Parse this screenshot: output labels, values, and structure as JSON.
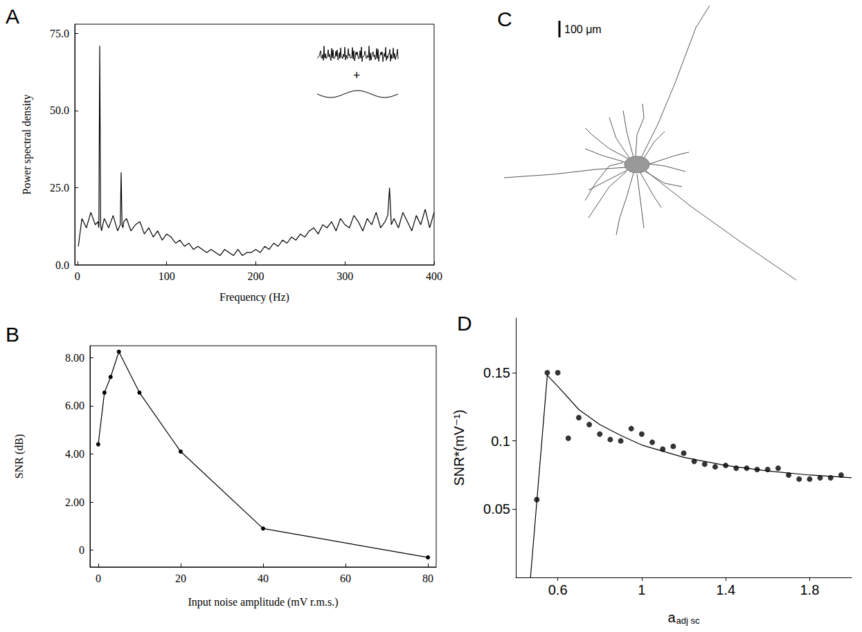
{
  "chart_data": [
    {
      "panel_label": "A",
      "type": "line",
      "xlabel": "Frequency (Hz)",
      "ylabel": "Power spectral density",
      "annotations": [
        "+"
      ],
      "x": [
        1,
        5,
        10,
        15,
        20,
        23,
        24,
        25,
        26,
        27,
        30,
        35,
        40,
        45,
        48,
        49,
        50,
        51,
        52,
        55,
        60,
        65,
        70,
        75,
        80,
        85,
        90,
        95,
        100,
        105,
        110,
        115,
        120,
        125,
        130,
        135,
        140,
        145,
        150,
        155,
        160,
        165,
        170,
        175,
        180,
        185,
        190,
        195,
        200,
        205,
        210,
        215,
        220,
        225,
        230,
        235,
        240,
        245,
        250,
        255,
        260,
        265,
        270,
        275,
        280,
        285,
        290,
        295,
        300,
        305,
        310,
        315,
        320,
        325,
        330,
        335,
        340,
        345,
        348,
        350,
        352,
        355,
        360,
        365,
        370,
        375,
        380,
        385,
        390,
        395,
        400
      ],
      "values": [
        6,
        15,
        12,
        17,
        13,
        14,
        12,
        71,
        13,
        11,
        15,
        12,
        16,
        11,
        13,
        30,
        13,
        12,
        14,
        15,
        11,
        13,
        14,
        10,
        12,
        9,
        11,
        8,
        10,
        9,
        7,
        8,
        6,
        7,
        5,
        6,
        5,
        4,
        5,
        4,
        3,
        5,
        4,
        3,
        5,
        3,
        4,
        4,
        5,
        4,
        6,
        5,
        7,
        6,
        8,
        7,
        9,
        8,
        10,
        9,
        11,
        12,
        10,
        13,
        12,
        14,
        11,
        15,
        13,
        12,
        16,
        14,
        11,
        15,
        13,
        17,
        12,
        14,
        16,
        25,
        13,
        15,
        12,
        17,
        14,
        11,
        16,
        13,
        18,
        12,
        17
      ],
      "color": "#000000",
      "marker": "none",
      "line_style": "solid",
      "xlim": [
        -3,
        400
      ],
      "ylim": [
        0,
        78
      ],
      "xticks": [
        0,
        100,
        200,
        300,
        400
      ],
      "yticks": [
        {
          "value": 0,
          "label": "0.0"
        },
        {
          "value": 25,
          "label": "25.0"
        },
        {
          "value": 50,
          "label": "50.0"
        },
        {
          "value": 75,
          "label": "75.0"
        }
      ],
      "grid": false
    },
    {
      "panel_label": "B",
      "type": "line",
      "xlabel": "Input noise amplitude (mV r.m.s.)",
      "ylabel": "SNR (dB)",
      "x": [
        0,
        1.5,
        3,
        5,
        10,
        20,
        40,
        80
      ],
      "values": [
        4.4,
        6.55,
        7.2,
        8.25,
        6.55,
        4.1,
        0.9,
        -0.3
      ],
      "color": "#000000",
      "marker": "circle",
      "line_style": "solid",
      "xlim": [
        -2,
        82
      ],
      "ylim": [
        -0.7,
        8.5
      ],
      "xticks": [
        0,
        20,
        40,
        60,
        80
      ],
      "yticks": [
        0,
        {
          "value": 2,
          "label": "2.00"
        },
        {
          "value": 4,
          "label": "4.00"
        },
        {
          "value": 6,
          "label": "6.00"
        },
        {
          "value": 8,
          "label": "8.00"
        }
      ],
      "grid": false
    },
    {
      "panel_label": "C",
      "type": "diagram",
      "scale_bar_label": "100 μm"
    },
    {
      "panel_label": "D",
      "type": "scatter",
      "xlabel": "a",
      "xlabel_subscript": "adj sc",
      "ylabel": "SNR*(mV⁻¹)",
      "series": [
        {
          "type": "scatter",
          "color": "#000000",
          "marker": "circle",
          "x": [
            0.5,
            0.55,
            0.6,
            0.65,
            0.7,
            0.75,
            0.8,
            0.85,
            0.9,
            0.95,
            1.0,
            1.05,
            1.1,
            1.15,
            1.2,
            1.25,
            1.3,
            1.35,
            1.4,
            1.45,
            1.5,
            1.55,
            1.6,
            1.65,
            1.7,
            1.75,
            1.8,
            1.85,
            1.9,
            1.95
          ],
          "values": [
            0.057,
            0.15,
            0.15,
            0.102,
            0.117,
            0.112,
            0.105,
            0.101,
            0.1,
            0.109,
            0.105,
            0.099,
            0.094,
            0.096,
            0.091,
            0.085,
            0.083,
            0.081,
            0.082,
            0.08,
            0.08,
            0.079,
            0.079,
            0.08,
            0.075,
            0.072,
            0.072,
            0.073,
            0.073,
            0.075
          ]
        },
        {
          "type": "line",
          "color": "#000000",
          "marker": "none",
          "line_style": "solid",
          "x": [
            0.47,
            0.55,
            0.6,
            0.7,
            0.8,
            0.9,
            1.0,
            1.2,
            1.4,
            1.6,
            1.8,
            2.0
          ],
          "values": [
            0,
            0.148,
            0.14,
            0.123,
            0.112,
            0.104,
            0.097,
            0.088,
            0.082,
            0.078,
            0.075,
            0.073
          ]
        }
      ],
      "xlim": [
        0.4,
        2.0
      ],
      "ylim": [
        0,
        0.19
      ],
      "xticks": [
        0.6,
        1,
        1.4,
        1.8
      ],
      "yticks": [
        0.05,
        0.1,
        0.15
      ],
      "grid": false
    }
  ]
}
